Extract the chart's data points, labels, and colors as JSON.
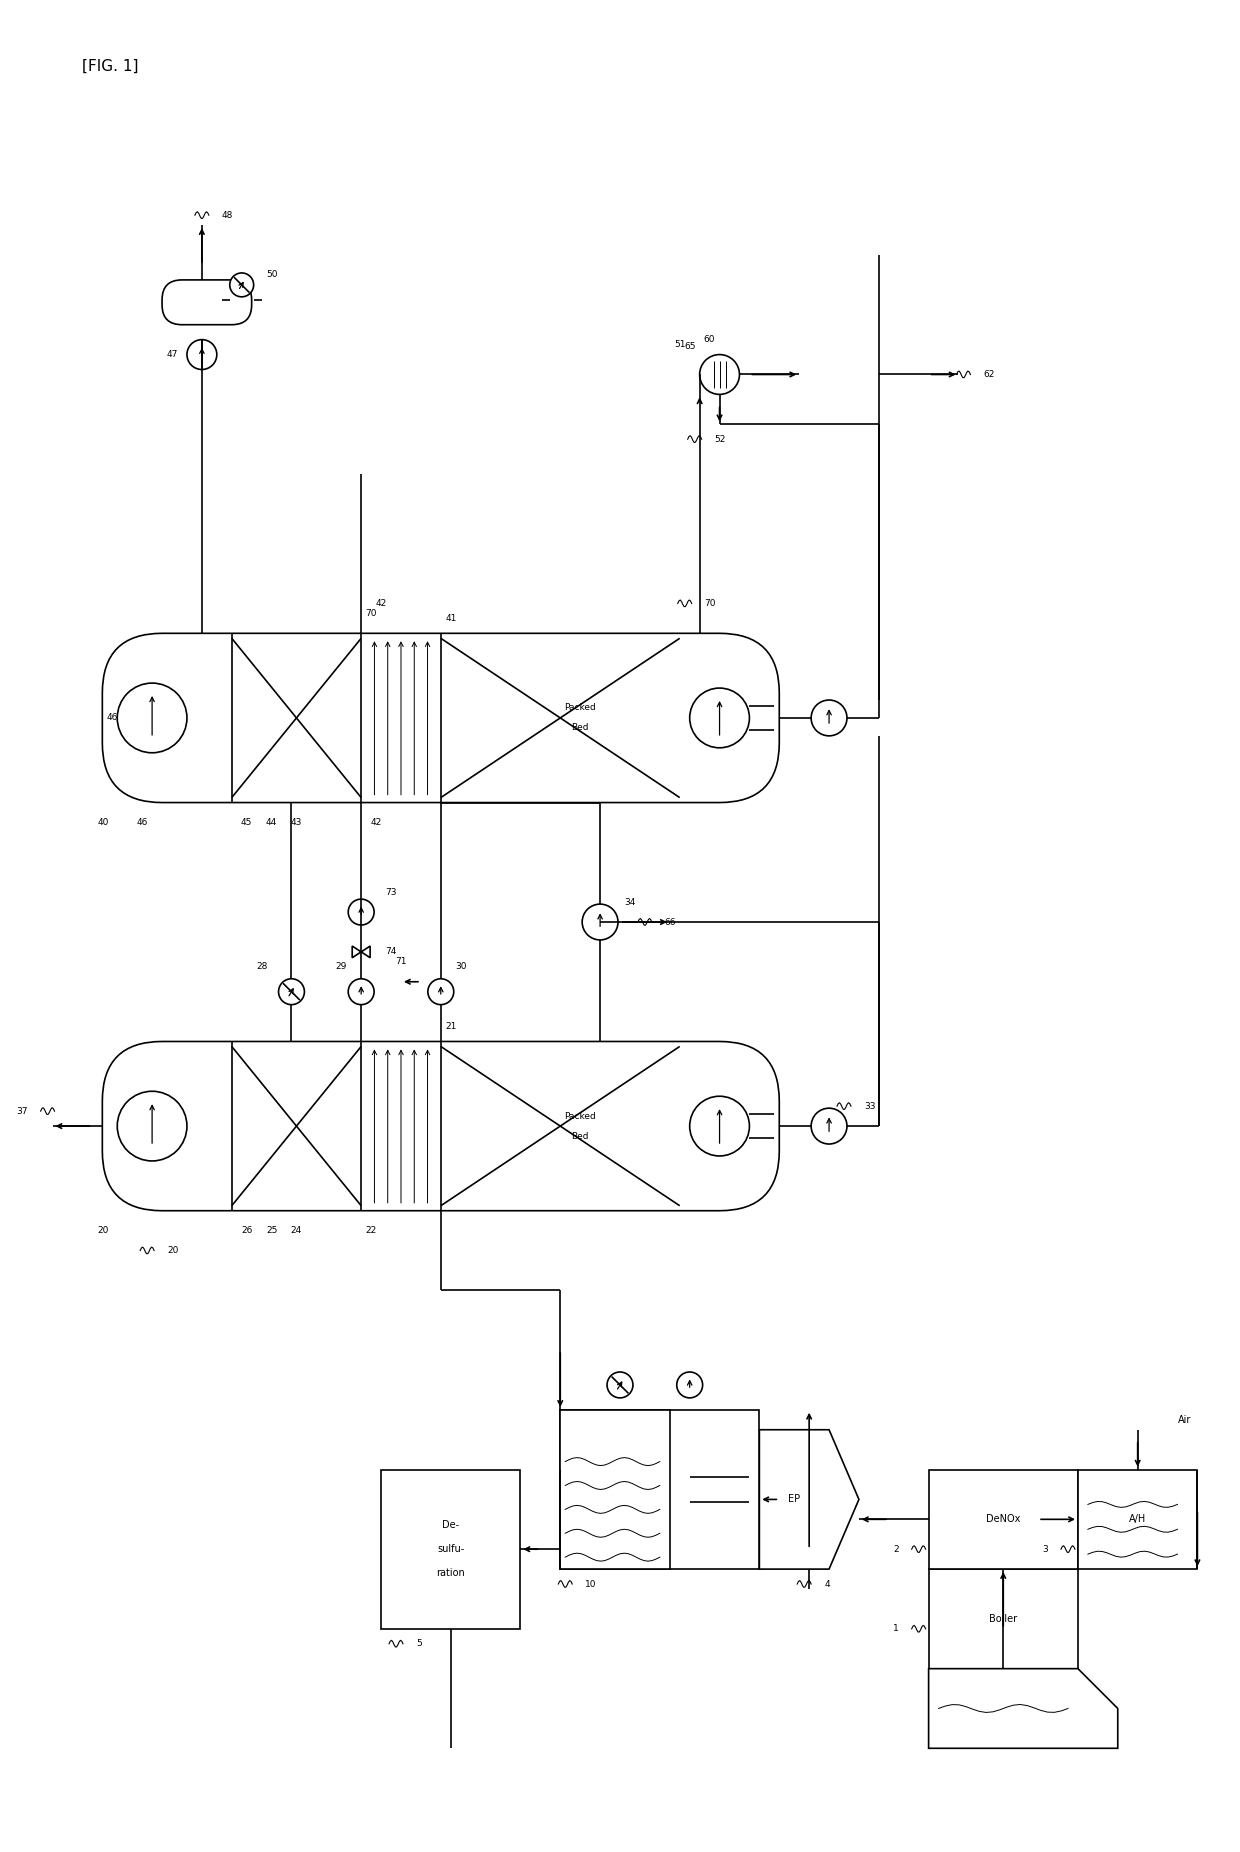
{
  "title": "[FIG. 1]",
  "bg_color": "#ffffff",
  "line_color": "#000000",
  "figsize": [
    12.4,
    18.52
  ],
  "dpi": 100,
  "xlim": [
    0,
    124
  ],
  "ylim": [
    0,
    185.2
  ]
}
